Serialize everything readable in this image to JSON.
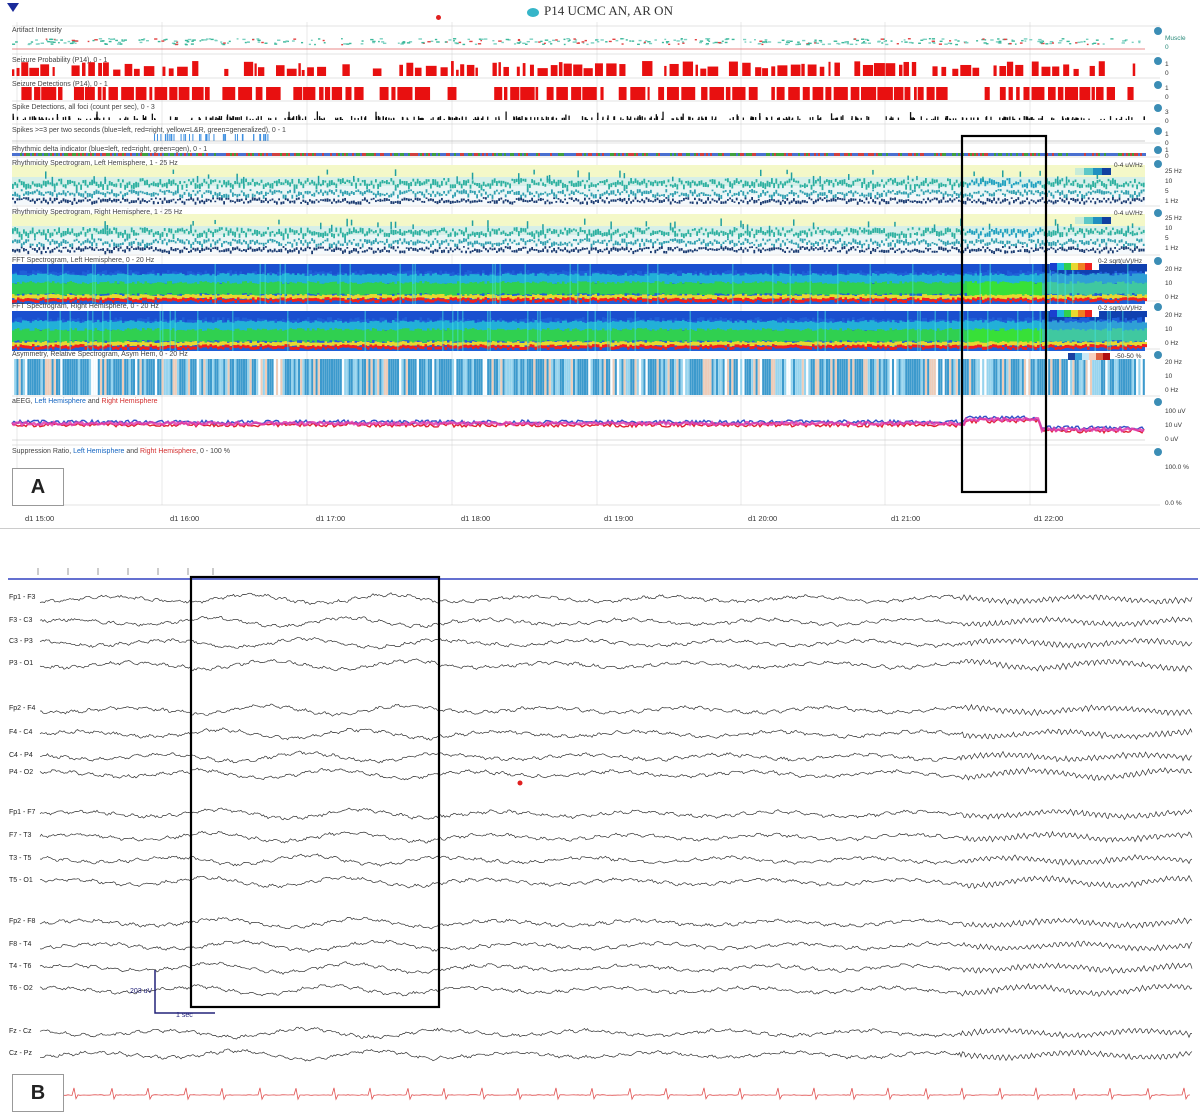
{
  "panel_a": {
    "title": "P14 UCMC AN, AR ON",
    "panel_letter": "A",
    "tracks": [
      {
        "label": "Artifact Intensity"
      },
      {
        "label": "Seizure Probability (P14), 0 - 1"
      },
      {
        "label": "Seizure Detections (P14), 0 - 1"
      },
      {
        "label": "Spike Detections, all foci (count per sec), 0 - 3"
      },
      {
        "label": "Spikes >=3 per two seconds (blue=left, red=right, yellow=L&R, green=generalized), 0 - 1"
      },
      {
        "label": "Rhythmic delta indicator (blue=left, red=right, green=gen), 0 - 1"
      },
      {
        "label": "Rhythmicity Spectrogram, Left Hemisphere, 1 - 25 Hz"
      },
      {
        "label": "Rhythmicity Spectrogram, Right Hemisphere, 1 - 25 Hz"
      },
      {
        "label": "FFT Spectrogram, Left Hemisphere, 0 - 20 Hz"
      },
      {
        "label": "FFT Spectrogram, Right Hemisphere, 0 - 20 Hz"
      },
      {
        "label": "Asymmetry, Relative Spectrogram, Asym Hem, 0 - 20 Hz"
      }
    ],
    "aeeg": {
      "prefix": "aEEG, ",
      "left": "Left Hemisphere",
      "and": " and ",
      "right": "Right Hemisphere"
    },
    "suppression": {
      "prefix": "Suppression Ratio, ",
      "left": "Left Hemisphere",
      "and": " and ",
      "right": "Right Hemisphere",
      "suffix": ", 0 - 100 %"
    },
    "axes": {
      "artifact": [
        "Muscle",
        "0"
      ],
      "seizure_prob": [
        "1",
        "0"
      ],
      "seizure_det": [
        "1",
        "0"
      ],
      "spike_det": [
        "3",
        "0"
      ],
      "spikes": [
        "1",
        "0"
      ],
      "delta": [
        "1",
        "0"
      ],
      "rhythm_left": [
        "25 Hz",
        "10",
        "5",
        "1 Hz"
      ],
      "rhythm_right": [
        "25 Hz",
        "10",
        "5",
        "1 Hz"
      ],
      "fft_left": [
        "20 Hz",
        "10",
        "0 Hz"
      ],
      "fft_right": [
        "20 Hz",
        "10",
        "0 Hz"
      ],
      "asym": [
        "20 Hz",
        "10",
        "0 Hz"
      ],
      "aeeg": [
        "100 uV",
        "10 uV",
        "0 uV"
      ],
      "suppression": [
        "100.0 %",
        "0.0 %"
      ]
    },
    "colorbars": {
      "rhythm_left": "0-4 uV/Hz",
      "rhythm_right": "0-4 uV/Hz",
      "fft_left": "0-2 sqrt(uV)/Hz",
      "fft_right": "0-2 sqrt(uV)/Hz",
      "asym": "-50-50 %"
    },
    "time_labels": [
      "d1 15:00",
      "d1 16:00",
      "d1 17:00",
      "d1 18:00",
      "d1 19:00",
      "d1 20:00",
      "d1 21:00",
      "d1 22:00"
    ]
  },
  "panel_b": {
    "panel_letter": "B",
    "channels": [
      "Fp1 - F3",
      "F3 - C3",
      "C3 - P3",
      "P3 - O1",
      "Fp2 - F4",
      "F4 - C4",
      "C4 - P4",
      "P4 - O2",
      "Fp1 - F7",
      "F7 - T3",
      "T3 - T5",
      "T5 - O1",
      "Fp2 - F8",
      "F8 - T4",
      "T4 - T6",
      "T6 - O2",
      "Fz - Cz",
      "Cz - Pz"
    ],
    "scale_amplitude": "203 uV",
    "scale_time": "1 sec"
  },
  "colors": {
    "seizure": "#e81010",
    "highlight_box": "#000000",
    "ekg": "#e05050",
    "scale": "#23237a"
  }
}
